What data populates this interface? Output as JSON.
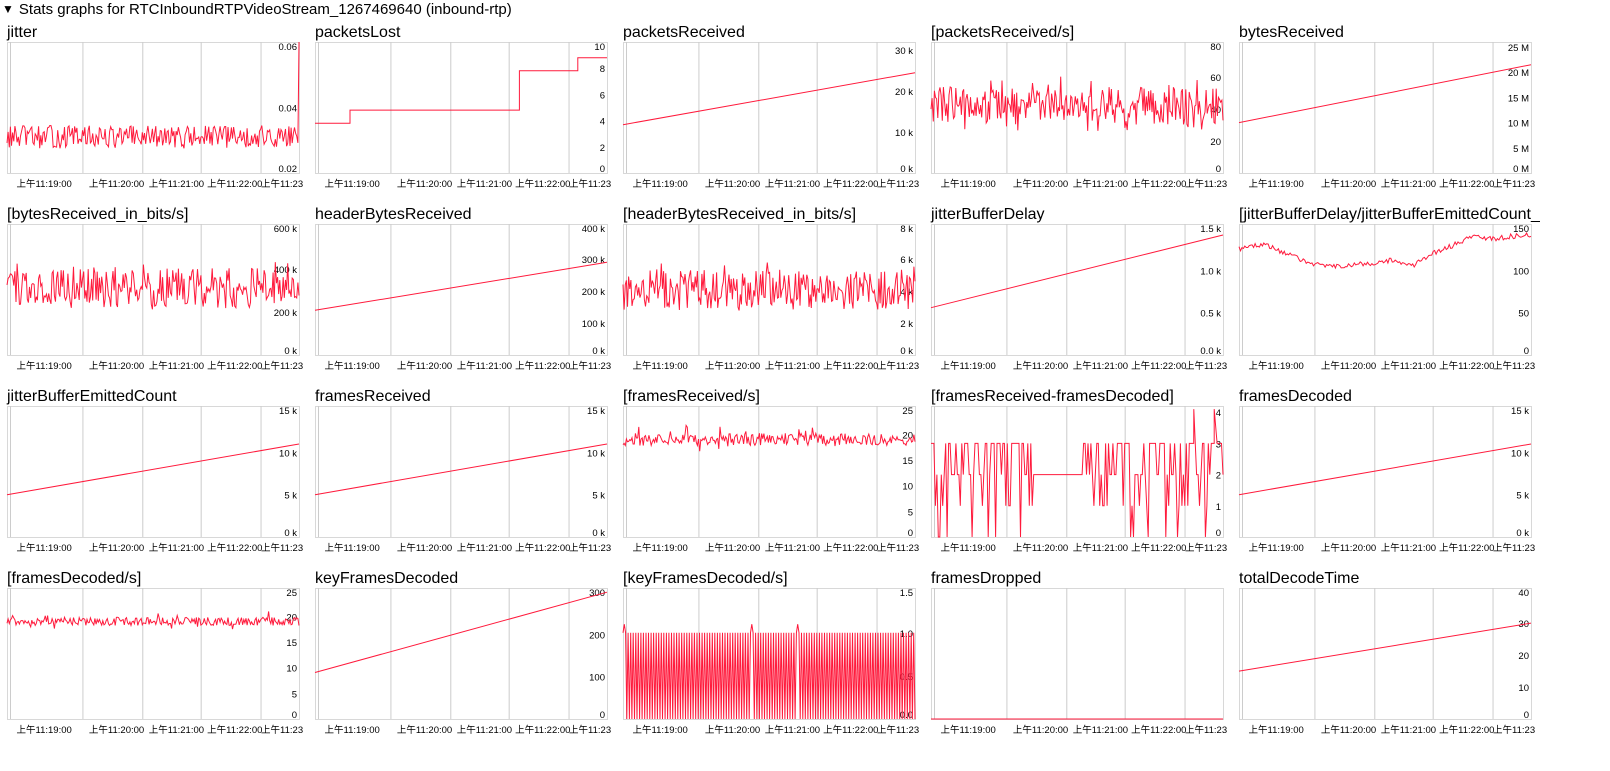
{
  "header": {
    "toggle_icon": "triangle-down-icon",
    "title": "Stats graphs for RTCInboundRTPVideoStream_1267469640 (inbound-rtp)"
  },
  "x_tick_labels": [
    "上午11:19:00",
    "上午11:20:00",
    "上午11:21:00",
    "上午11:22:00",
    "上午11:23"
  ],
  "colors": {
    "line": "#ff1a3c",
    "grid": "#cccccc",
    "border": "#d8d8d8"
  },
  "chart_data": [
    {
      "type": "line",
      "title": "jitter",
      "ylim": [
        0.02,
        0.06
      ],
      "yticks": [
        {
          "v": 0.02,
          "label": "0.02"
        },
        {
          "v": 0.04,
          "label": "0.04"
        },
        {
          "v": 0.06,
          "label": "0.06"
        }
      ],
      "shape": "noise",
      "params": [
        0.031,
        0.0035,
        0.0075,
        0.0008,
        0.061
      ]
    },
    {
      "type": "line",
      "title": "packetsLost",
      "ylim": [
        0,
        10
      ],
      "yticks": [
        {
          "v": 0,
          "label": "0"
        },
        {
          "v": 2,
          "label": "2"
        },
        {
          "v": 4,
          "label": "4"
        },
        {
          "v": 6,
          "label": "6"
        },
        {
          "v": 8,
          "label": "8"
        },
        {
          "v": 10,
          "label": "10"
        }
      ],
      "shape": "step",
      "points": [
        [
          0,
          3.8
        ],
        [
          0.12,
          3.8
        ],
        [
          0.12,
          4.8
        ],
        [
          0.7,
          4.8
        ],
        [
          0.7,
          7.8
        ],
        [
          0.9,
          7.8
        ],
        [
          0.9,
          8.8
        ],
        [
          1,
          8.8
        ]
      ]
    },
    {
      "type": "line",
      "title": "packetsReceived",
      "ylim": [
        0,
        32000
      ],
      "yticks": [
        {
          "v": 0,
          "label": "0 k"
        },
        {
          "v": 10000,
          "label": "10 k"
        },
        {
          "v": 20000,
          "label": "20 k"
        },
        {
          "v": 30000,
          "label": "30 k"
        }
      ],
      "shape": "linear",
      "points": [
        [
          0,
          11800
        ],
        [
          1,
          24500
        ]
      ]
    },
    {
      "type": "line",
      "title": "[packetsReceived/s]",
      "ylim": [
        0,
        82
      ],
      "yticks": [
        {
          "v": 0,
          "label": "0"
        },
        {
          "v": 20,
          "label": "20"
        },
        {
          "v": 40,
          "label": "40"
        },
        {
          "v": 60,
          "label": "60"
        },
        {
          "v": 80,
          "label": "80"
        }
      ],
      "shape": "noise",
      "params": [
        42,
        12,
        6,
        0.5,
        0
      ]
    },
    {
      "type": "line",
      "title": "bytesReceived",
      "ylim": [
        0,
        26000000
      ],
      "yticks": [
        {
          "v": 0,
          "label": "0 M"
        },
        {
          "v": 5000000,
          "label": "5 M"
        },
        {
          "v": 10000000,
          "label": "10 M"
        },
        {
          "v": 15000000,
          "label": "15 M"
        },
        {
          "v": 20000000,
          "label": "20 M"
        },
        {
          "v": 25000000,
          "label": "25 M"
        }
      ],
      "shape": "linear",
      "points": [
        [
          0,
          10000000
        ],
        [
          1,
          21500000
        ]
      ]
    },
    {
      "type": "line",
      "title": "[bytesReceived_in_bits/s]",
      "ylim": [
        0,
        610000
      ],
      "yticks": [
        {
          "v": 0,
          "label": "0 k"
        },
        {
          "v": 200000,
          "label": "200 k"
        },
        {
          "v": 400000,
          "label": "400 k"
        },
        {
          "v": 600000,
          "label": "600 k"
        }
      ],
      "shape": "noise",
      "params": [
        310000,
        95000,
        25000,
        0.55,
        0
      ]
    },
    {
      "type": "line",
      "title": "headerBytesReceived",
      "ylim": [
        0,
        410000
      ],
      "yticks": [
        {
          "v": 0,
          "label": "0 k"
        },
        {
          "v": 100000,
          "label": "100 k"
        },
        {
          "v": 200000,
          "label": "200 k"
        },
        {
          "v": 300000,
          "label": "300 k"
        },
        {
          "v": 400000,
          "label": "400 k"
        }
      ],
      "shape": "linear",
      "points": [
        [
          0,
          140000
        ],
        [
          1,
          290000
        ]
      ]
    },
    {
      "type": "line",
      "title": "[headerBytesReceived_in_bits/s]",
      "ylim": [
        0,
        8200
      ],
      "yticks": [
        {
          "v": 0,
          "label": "0 k"
        },
        {
          "v": 2000,
          "label": "2 k"
        },
        {
          "v": 4000,
          "label": "4 k"
        },
        {
          "v": 6000,
          "label": "6 k"
        },
        {
          "v": 8000,
          "label": "8 k"
        }
      ],
      "shape": "noise",
      "params": [
        4100,
        1250,
        500,
        0.5,
        0
      ]
    },
    {
      "type": "line",
      "title": "jitterBufferDelay",
      "ylim": [
        0,
        1550
      ],
      "yticks": [
        {
          "v": 0,
          "label": "0.0 k"
        },
        {
          "v": 500,
          "label": "0.5 k"
        },
        {
          "v": 1000,
          "label": "1.0 k"
        },
        {
          "v": 1500,
          "label": "1.5 k"
        }
      ],
      "shape": "linear",
      "points": [
        [
          0,
          560
        ],
        [
          1,
          1420
        ]
      ]
    },
    {
      "type": "line",
      "title": "[jitterBufferDelay/jitterBufferEmittedCount_in_ms]",
      "ylim": [
        0,
        155
      ],
      "yticks": [
        {
          "v": 0,
          "label": "0"
        },
        {
          "v": 50,
          "label": "50"
        },
        {
          "v": 100,
          "label": "100"
        },
        {
          "v": 150,
          "label": "150"
        }
      ],
      "shape": "wave",
      "points": [
        [
          0,
          126
        ],
        [
          0.08,
          131
        ],
        [
          0.15,
          122
        ],
        [
          0.22,
          112
        ],
        [
          0.3,
          104
        ],
        [
          0.36,
          106
        ],
        [
          0.45,
          108
        ],
        [
          0.52,
          112
        ],
        [
          0.6,
          106
        ],
        [
          0.66,
          120
        ],
        [
          0.72,
          128
        ],
        [
          0.8,
          140
        ],
        [
          0.88,
          138
        ],
        [
          0.95,
          141
        ],
        [
          1,
          142
        ]
      ],
      "noise": 3
    },
    {
      "type": "line",
      "title": "jitterBufferEmittedCount",
      "ylim": [
        0,
        15500
      ],
      "yticks": [
        {
          "v": 0,
          "label": "0 k"
        },
        {
          "v": 5000,
          "label": "5 k"
        },
        {
          "v": 10000,
          "label": "10 k"
        },
        {
          "v": 15000,
          "label": "15 k"
        }
      ],
      "shape": "linear",
      "points": [
        [
          0,
          5000
        ],
        [
          1,
          11000
        ]
      ]
    },
    {
      "type": "line",
      "title": "framesReceived",
      "ylim": [
        0,
        15500
      ],
      "yticks": [
        {
          "v": 0,
          "label": "0 k"
        },
        {
          "v": 5000,
          "label": "5 k"
        },
        {
          "v": 10000,
          "label": "10 k"
        },
        {
          "v": 15000,
          "label": "15 k"
        }
      ],
      "shape": "linear",
      "points": [
        [
          0,
          5000
        ],
        [
          1,
          11000
        ]
      ]
    },
    {
      "type": "line",
      "title": "[framesReceived/s]",
      "ylim": [
        0,
        25.5
      ],
      "yticks": [
        {
          "v": 0,
          "label": "0"
        },
        {
          "v": 5,
          "label": "5"
        },
        {
          "v": 10,
          "label": "10"
        },
        {
          "v": 15,
          "label": "15"
        },
        {
          "v": 20,
          "label": "20"
        },
        {
          "v": 25,
          "label": "25"
        }
      ],
      "shape": "noise",
      "params": [
        19,
        1.2,
        2.5,
        0.12,
        0
      ]
    },
    {
      "type": "line",
      "title": "[framesReceived-framesDecoded]",
      "ylim": [
        0,
        4.2
      ],
      "yticks": [
        {
          "v": 0,
          "label": "0"
        },
        {
          "v": 1,
          "label": "1"
        },
        {
          "v": 2,
          "label": "2"
        },
        {
          "v": 3,
          "label": "3"
        },
        {
          "v": 4,
          "label": "4"
        }
      ],
      "shape": "discrete",
      "params": [
        [
          0,
          1,
          2,
          3
        ],
        4.1
      ]
    },
    {
      "type": "line",
      "title": "framesDecoded",
      "ylim": [
        0,
        15500
      ],
      "yticks": [
        {
          "v": 0,
          "label": "0 k"
        },
        {
          "v": 5000,
          "label": "5 k"
        },
        {
          "v": 10000,
          "label": "10 k"
        },
        {
          "v": 15000,
          "label": "15 k"
        }
      ],
      "shape": "linear",
      "points": [
        [
          0,
          5000
        ],
        [
          1,
          11000
        ]
      ]
    },
    {
      "type": "line",
      "title": "[framesDecoded/s]",
      "ylim": [
        0,
        25.5
      ],
      "yticks": [
        {
          "v": 0,
          "label": "0"
        },
        {
          "v": 5,
          "label": "5"
        },
        {
          "v": 10,
          "label": "10"
        },
        {
          "v": 15,
          "label": "15"
        },
        {
          "v": 20,
          "label": "20"
        },
        {
          "v": 25,
          "label": "25"
        }
      ],
      "shape": "noise",
      "params": [
        19,
        0.8,
        1.5,
        0.1,
        0
      ]
    },
    {
      "type": "line",
      "title": "keyFramesDecoded",
      "ylim": [
        0,
        310
      ],
      "yticks": [
        {
          "v": 0,
          "label": "0"
        },
        {
          "v": 100,
          "label": "100"
        },
        {
          "v": 200,
          "label": "200"
        },
        {
          "v": 300,
          "label": "300"
        }
      ],
      "shape": "linear",
      "points": [
        [
          0,
          110
        ],
        [
          1,
          300
        ]
      ]
    },
    {
      "type": "line",
      "title": "[keyFramesDecoded/s]",
      "ylim": [
        0,
        1.52
      ],
      "yticks": [
        {
          "v": 0,
          "label": "0.0"
        },
        {
          "v": 0.5,
          "label": "0.5"
        },
        {
          "v": 1,
          "label": "1.0"
        },
        {
          "v": 1.5,
          "label": "1.5"
        }
      ],
      "shape": "square",
      "params": [
        1.0,
        0,
        1.1
      ]
    },
    {
      "type": "line",
      "title": "framesDropped",
      "ylim": [
        0,
        1
      ],
      "yticks": [],
      "shape": "linear",
      "points": [
        [
          0,
          0
        ],
        [
          1,
          0
        ]
      ]
    },
    {
      "type": "line",
      "title": "totalDecodeTime",
      "ylim": [
        0,
        41
      ],
      "yticks": [
        {
          "v": 0,
          "label": "0"
        },
        {
          "v": 10,
          "label": "10"
        },
        {
          "v": 20,
          "label": "20"
        },
        {
          "v": 30,
          "label": "30"
        },
        {
          "v": 40,
          "label": "40"
        }
      ],
      "shape": "linear",
      "points": [
        [
          0,
          15
        ],
        [
          1,
          30
        ]
      ]
    }
  ]
}
